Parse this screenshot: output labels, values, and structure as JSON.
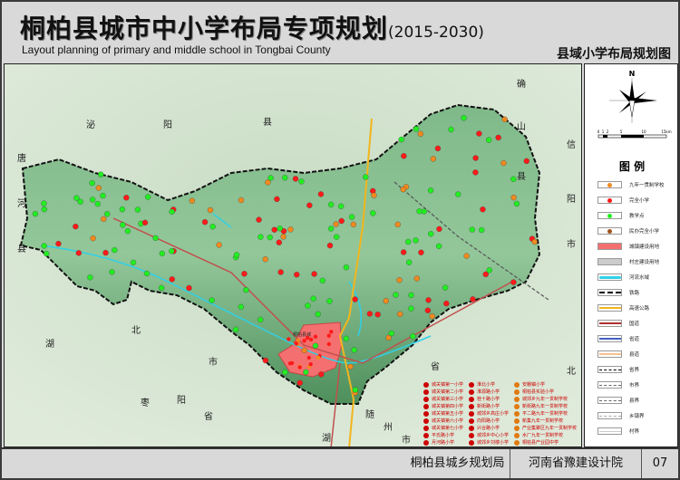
{
  "header": {
    "title": "桐柏县城市中小学布局专项规划",
    "years": "(2015-2030)",
    "subtitle": "Layout planning of primary and middle school in Tongbai County",
    "map_title": "县域小学布局规划图"
  },
  "map": {
    "neighbor_labels": [
      "唐",
      "河",
      "县",
      "泌",
      "阳",
      "县",
      "确",
      "山",
      "县",
      "信",
      "阳",
      "市",
      "湖",
      "北",
      "省",
      "枣",
      "阳",
      "市",
      "随",
      "州",
      "市",
      "湖",
      "北",
      "省"
    ],
    "urban_label": "桐柏县城",
    "school_list": {
      "col1": [
        "城关镇第一小学",
        "城关镇第二小学",
        "城关镇第三小学",
        "城关镇第四小学",
        "城关镇第五小学",
        "城关镇第六小学",
        "城关镇第七小学",
        "平氏路小学",
        "月河路小学"
      ],
      "col2": [
        "淮北小学",
        "淮源路小学",
        "桂十路小学",
        "新街路小学",
        "城郊乡高庄小学",
        "向阳路小学",
        "兴合路小学",
        "城郊乡中心小学",
        "城郊乡刘楼小学"
      ],
      "col3": [
        "安棚镇小学",
        "桐柏县实验小学",
        "城郊乡九年一贯制学校",
        "新街路九年一贯制学校",
        "平二路九年一贯制学校",
        "新集九年一贯制学校",
        "产业集聚区九年一贯制学校",
        "水厂九年一贯制学校",
        "桐柏县产业园中学"
      ]
    },
    "colors": {
      "complete_primary": "#ff1a1a",
      "teaching_point": "#22ee22",
      "nine_year": "#f08a20",
      "private": "#a0521a",
      "urban": "#f47070"
    }
  },
  "legend": {
    "compass_letter": "N",
    "scale_labels": [
      "0",
      "1",
      "2",
      "5",
      "10",
      "15km"
    ],
    "title": "图  例",
    "items": [
      {
        "label": "九年一贯制学校",
        "icon": "orange-dot"
      },
      {
        "label": "完全小学",
        "icon": "red-dot"
      },
      {
        "label": "教学点",
        "icon": "green-dot"
      },
      {
        "label": "民办完全小学",
        "icon": "brown-dot"
      },
      {
        "label": "城镇建设用地",
        "icon": "red-fill"
      },
      {
        "label": "村庄建设用地",
        "icon": "gray-fill"
      },
      {
        "label": "河流水域",
        "icon": "cyan-wave"
      },
      {
        "label": "铁路",
        "icon": "rail-line"
      },
      {
        "label": "高速公路",
        "icon": "orange-line"
      },
      {
        "label": "国道",
        "icon": "darkred-line"
      },
      {
        "label": "省道",
        "icon": "blue-line"
      },
      {
        "label": "县道",
        "icon": "peach-line"
      },
      {
        "label": "省界",
        "icon": "dash-bold"
      },
      {
        "label": "市界",
        "icon": "dash"
      },
      {
        "label": "县界",
        "icon": "dash"
      },
      {
        "label": "乡镇界",
        "icon": "dash-light"
      },
      {
        "label": "村界",
        "icon": "thin-line"
      }
    ]
  },
  "footer": {
    "bureau": "桐柏县城乡规划局",
    "institute": "河南省豫建设计院",
    "page": "07"
  }
}
